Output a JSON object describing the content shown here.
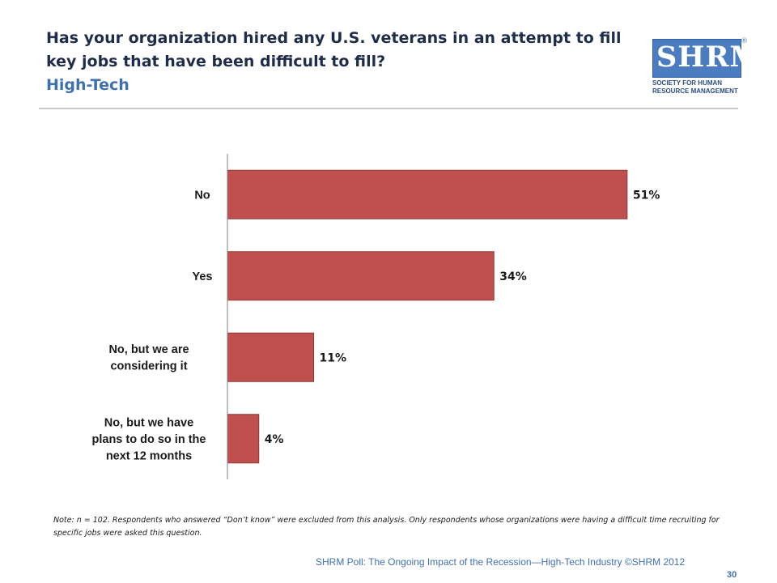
{
  "header": {
    "title": "Has your organization hired any U.S. veterans in an attempt to fill key jobs that have been difficult to fill?",
    "subtitle": "High-Tech"
  },
  "logo": {
    "letters": "SHRM",
    "reg": "®",
    "line1": "SOCIETY FOR HUMAN",
    "line2": "RESOURCE MANAGEMENT"
  },
  "chart_data": {
    "type": "bar",
    "orientation": "horizontal",
    "categories": [
      [
        "No"
      ],
      [
        "Yes"
      ],
      [
        "No, but we are",
        "considering it"
      ],
      [
        "No, but we have",
        "plans to do so in the",
        "next 12 months"
      ]
    ],
    "values": [
      51,
      34,
      11,
      4
    ],
    "value_labels": [
      "51%",
      "34%",
      "11%",
      "4%"
    ],
    "xlim": [
      0,
      60
    ],
    "grid": false,
    "legend": "none",
    "bar_color": "#c0504d",
    "bar_edge_color": "#8c3a38"
  },
  "note": "Note: n = 102. Respondents who answered “Don’t know” were excluded from this analysis. Only respondents whose organizations were having a difficult time recruiting for specific jobs were asked this question.",
  "footer": {
    "text": "SHRM Poll: The Ongoing Impact of the Recession—High-Tech Industry ©SHRM 2012",
    "page": "30"
  }
}
